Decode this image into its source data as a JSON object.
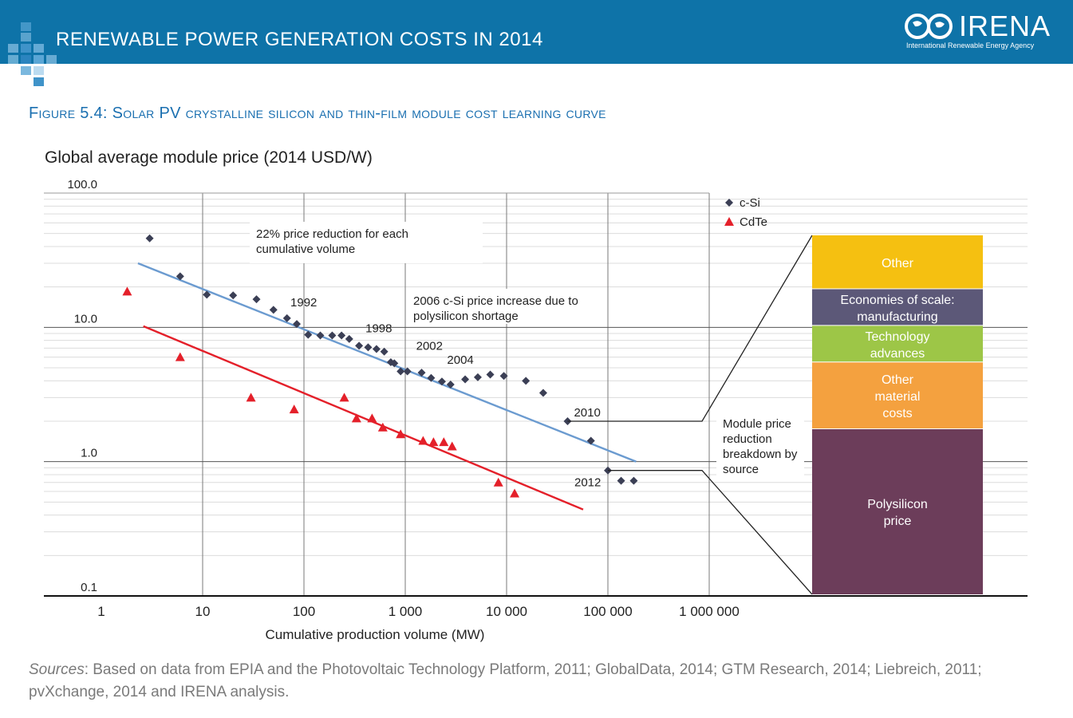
{
  "header": {
    "banner_title": "RENEWABLE POWER GENERATION COSTS IN 2014",
    "logo_text": "IRENA",
    "logo_subtitle": "International Renewable Energy Agency",
    "banner_color": "#0e73a8"
  },
  "figure": {
    "title": "Figure 5.4: Solar PV crystalline silicon and thin-film module cost learning curve",
    "y_title": "Global average module price (2014 USD/W)",
    "sources_label": "Sources",
    "sources_text": ": Based on data from EPIA and the Photovoltaic Technology Platform, 2011; GlobalData, 2014; GTM Research, 2014; Liebreich, 2011; pvXchange, 2014 and IRENA analysis."
  },
  "chart_data": {
    "type": "scatter",
    "x_scale": "log",
    "y_scale": "log",
    "xlim": [
      1,
      1000000
    ],
    "ylim": [
      0.1,
      100
    ],
    "xlabel": "Cumulative production volume (MW)",
    "x_ticks": [
      {
        "value": 1,
        "label": "1"
      },
      {
        "value": 10,
        "label": "10"
      },
      {
        "value": 100,
        "label": "100"
      },
      {
        "value": 1000,
        "label": "1 000"
      },
      {
        "value": 10000,
        "label": "10 000"
      },
      {
        "value": 100000,
        "label": "100 000"
      },
      {
        "value": 1000000,
        "label": "1 000 000"
      }
    ],
    "y_ticks": [
      {
        "value": 100,
        "label": "100.0"
      },
      {
        "value": 10,
        "label": "10.0"
      },
      {
        "value": 1,
        "label": "1.0"
      },
      {
        "value": 0.1,
        "label": "0.1"
      }
    ],
    "series": [
      {
        "name": "c-Si",
        "marker": "diamond",
        "color": "#3b3f55",
        "points": [
          [
            3,
            46
          ],
          [
            6,
            24
          ],
          [
            11,
            17.5
          ],
          [
            20,
            17.3
          ],
          [
            34,
            16.2
          ],
          [
            50,
            13.5
          ],
          [
            68,
            11.7
          ],
          [
            85,
            10.6
          ],
          [
            110,
            8.8
          ],
          [
            145,
            8.7
          ],
          [
            190,
            8.7
          ],
          [
            235,
            8.7
          ],
          [
            280,
            8.2
          ],
          [
            350,
            7.3
          ],
          [
            430,
            7.1
          ],
          [
            520,
            6.9
          ],
          [
            620,
            6.6
          ],
          [
            720,
            5.5
          ],
          [
            780,
            5.4
          ],
          [
            900,
            4.7
          ],
          [
            1050,
            4.7
          ],
          [
            1450,
            4.6
          ],
          [
            1800,
            4.2
          ],
          [
            2300,
            3.95
          ],
          [
            2800,
            3.75
          ],
          [
            3900,
            4.1
          ],
          [
            5200,
            4.25
          ],
          [
            6900,
            4.45
          ],
          [
            9400,
            4.35
          ],
          [
            15500,
            4.0
          ],
          [
            23000,
            3.25
          ],
          [
            40000,
            2.0
          ],
          [
            68000,
            1.43
          ],
          [
            100000,
            0.86
          ],
          [
            135000,
            0.72
          ],
          [
            180000,
            0.72
          ]
        ]
      },
      {
        "name": "CdTe",
        "marker": "triangle",
        "color": "#e4202a",
        "points": [
          [
            1.8,
            18.5
          ],
          [
            6,
            6
          ],
          [
            30,
            3
          ],
          [
            80,
            2.45
          ],
          [
            250,
            3
          ],
          [
            330,
            2.1
          ],
          [
            470,
            2.1
          ],
          [
            600,
            1.8
          ],
          [
            900,
            1.6
          ],
          [
            1500,
            1.43
          ],
          [
            1900,
            1.4
          ],
          [
            2400,
            1.4
          ],
          [
            2900,
            1.3
          ],
          [
            8300,
            0.7
          ],
          [
            12000,
            0.58
          ]
        ]
      }
    ],
    "trendlines": [
      {
        "series": "c-Si",
        "color": "#6b9bd0",
        "from": [
          2.3,
          30
        ],
        "to": [
          190000,
          1.0
        ]
      },
      {
        "series": "CdTe",
        "color": "#e4202a",
        "from": [
          2.6,
          10.2
        ],
        "to": [
          57000,
          0.44
        ]
      }
    ],
    "point_labels": [
      {
        "text": "1992",
        "at": [
          85,
          10.6
        ]
      },
      {
        "text": "1998",
        "at": [
          235,
          8.7
        ]
      },
      {
        "text": "2002",
        "at": [
          620,
          6.6
        ]
      },
      {
        "text": "2004",
        "at": [
          1800,
          4.2
        ]
      },
      {
        "text": "2010",
        "at": [
          40000,
          2.0
        ]
      },
      {
        "text": "2012",
        "at": [
          100000,
          0.86
        ]
      }
    ],
    "annotations": [
      {
        "id": "reduction",
        "lines": [
          "22% price reduction for each",
          "cumulative volume"
        ]
      },
      {
        "id": "shortage",
        "lines": [
          "2006 c-Si price increase due to",
          "polysilicon shortage"
        ]
      },
      {
        "id": "breakdown",
        "lines": [
          "Module price",
          "reduction",
          "breakdown by",
          "source"
        ]
      }
    ],
    "legend": [
      {
        "label": "c-Si",
        "marker": "diamond",
        "color": "#3b3f55"
      },
      {
        "label": "CdTe",
        "marker": "triangle",
        "color": "#e4202a"
      }
    ],
    "breakdown": {
      "title": "Module price reduction breakdown by source",
      "segments": [
        {
          "label": [
            "Other"
          ],
          "share": 0.15,
          "color": "#f5c011"
        },
        {
          "label": [
            "Economies of scale:",
            "manufacturing"
          ],
          "share": 0.102,
          "color": "#5c5878"
        },
        {
          "label": [
            "Technology",
            "advances"
          ],
          "share": 0.102,
          "color": "#9dc647"
        },
        {
          "label": [
            "Other",
            "material",
            "costs"
          ],
          "share": 0.186,
          "color": "#f4a13f"
        },
        {
          "label": [
            "Polysilicon",
            "price"
          ],
          "share": 0.46,
          "color": "#6c3d5a"
        }
      ]
    }
  }
}
